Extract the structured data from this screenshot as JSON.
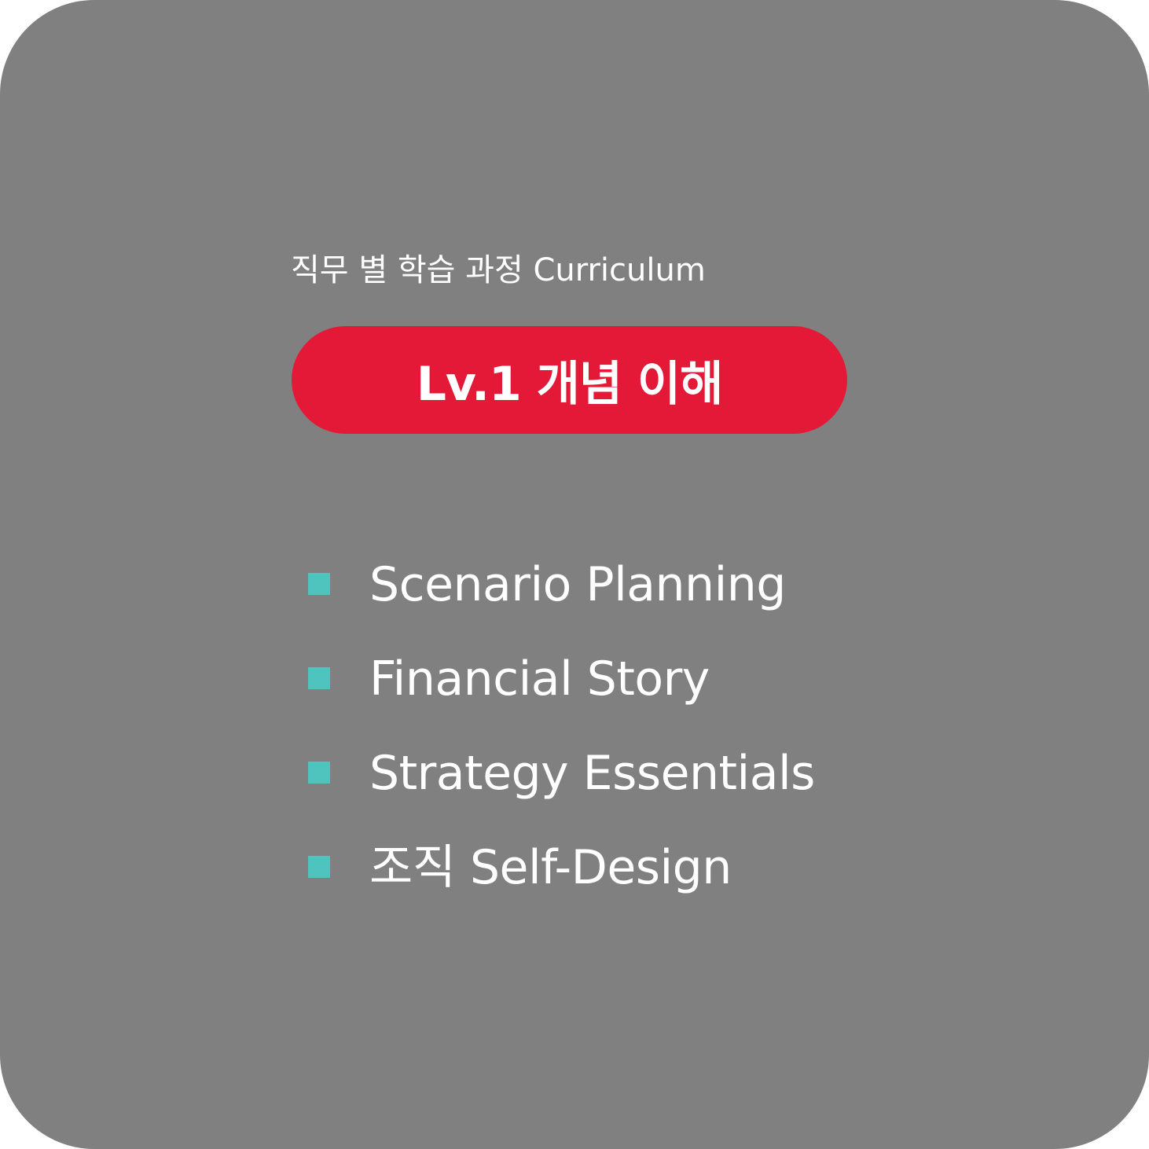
{
  "header": {
    "subtitle": "직무 별 학습 과정 Curriculum"
  },
  "level": {
    "label": "Lv.1 개념 이해"
  },
  "courses": [
    {
      "label": "Scenario Planning"
    },
    {
      "label": "Financial Story"
    },
    {
      "label": "Strategy Essentials"
    },
    {
      "label": "조직 Self-Design"
    }
  ],
  "colors": {
    "background": "#808080",
    "pill": "#e31937",
    "bullet": "#4fc3bd",
    "text": "#ffffff"
  }
}
